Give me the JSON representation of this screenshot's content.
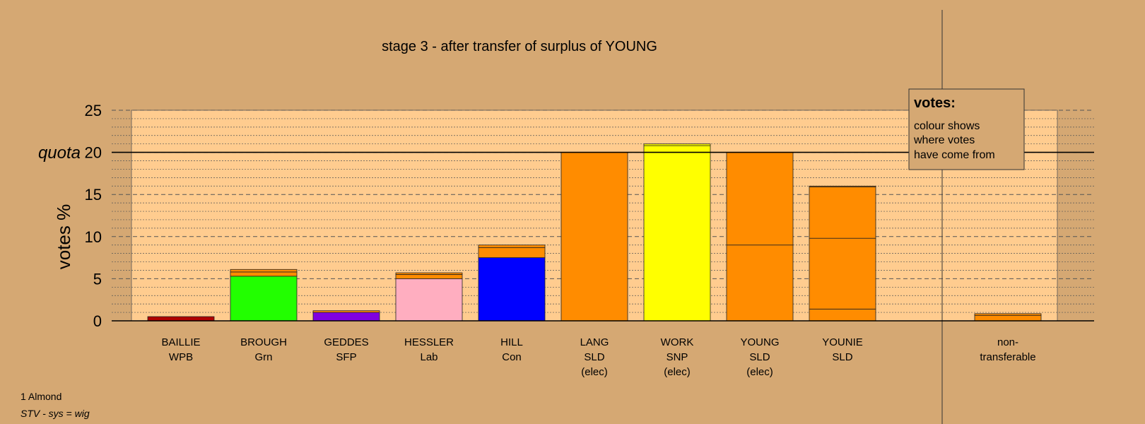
{
  "chart_data": {
    "type": "bar",
    "title": "stage 3 - after transfer of surplus of YOUNG",
    "ylabel": "votes %",
    "ylim": [
      0,
      25
    ],
    "yticks": [
      "0",
      "5",
      "10",
      "15",
      "20",
      "25"
    ],
    "quota": {
      "label": "quota",
      "value": 20
    },
    "categories": [
      {
        "lines": [
          "BAILLIE",
          "WPB"
        ],
        "segments": [
          {
            "value": 0.5,
            "color": "#b00000"
          }
        ]
      },
      {
        "lines": [
          "BROUGH",
          "Grn"
        ],
        "segments": [
          {
            "value": 5.3,
            "color": "#22ff00"
          },
          {
            "value": 0.5,
            "color": "#ff8c00"
          },
          {
            "value": 0.3,
            "color": "#ff8c00"
          }
        ]
      },
      {
        "lines": [
          "GEDDES",
          "SFP"
        ],
        "segments": [
          {
            "value": 1.0,
            "color": "#8000e0"
          },
          {
            "value": 0.2,
            "color": "#ff8c00"
          }
        ]
      },
      {
        "lines": [
          "HESSLER",
          "Lab"
        ],
        "segments": [
          {
            "value": 5.0,
            "color": "#ffaec0"
          },
          {
            "value": 0.5,
            "color": "#ff8c00"
          },
          {
            "value": 0.2,
            "color": "#ff8c00"
          }
        ]
      },
      {
        "lines": [
          "HILL",
          "Con"
        ],
        "segments": [
          {
            "value": 7.5,
            "color": "#0000ff"
          },
          {
            "value": 1.2,
            "color": "#ff8c00"
          },
          {
            "value": 0.3,
            "color": "#ff8c00"
          }
        ]
      },
      {
        "lines": [
          "LANG",
          "SLD",
          "(elec)"
        ],
        "segments": [
          {
            "value": 20.0,
            "color": "#ff8c00"
          }
        ]
      },
      {
        "lines": [
          "WORK",
          "SNP",
          "(elec)"
        ],
        "segments": [
          {
            "value": 20.8,
            "color": "#ffff00"
          },
          {
            "value": 0.2,
            "color": "#ffff00"
          }
        ]
      },
      {
        "lines": [
          "YOUNG",
          "SLD",
          "(elec)"
        ],
        "segments": [
          {
            "value": 9.0,
            "color": "#ff8c00"
          },
          {
            "value": 11.0,
            "color": "#ff8c00"
          }
        ]
      },
      {
        "lines": [
          "YOUNIE",
          "SLD"
        ],
        "segments": [
          {
            "value": 1.4,
            "color": "#ff8c00"
          },
          {
            "value": 8.4,
            "color": "#ff8c00"
          },
          {
            "value": 6.1,
            "color": "#ff8c00"
          },
          {
            "value": 0.1,
            "color": "#ff8c00"
          }
        ]
      },
      {
        "lines": [
          "non-",
          "transferable"
        ],
        "segments": [
          {
            "value": 0.65,
            "color": "#ff8c00"
          },
          {
            "value": 0.2,
            "color": "#ff8c00"
          }
        ],
        "separate": true
      }
    ],
    "legend": {
      "title": "votes:",
      "lines": [
        "colour shows",
        "where votes",
        "have come from"
      ],
      "placement": "top-right"
    },
    "colors": {
      "background": "#d5a873",
      "plot_area": "#ffcc8f",
      "grid": "#555555"
    }
  },
  "notes": {
    "area": "1 Almond",
    "system": "STV - sys = wig"
  }
}
